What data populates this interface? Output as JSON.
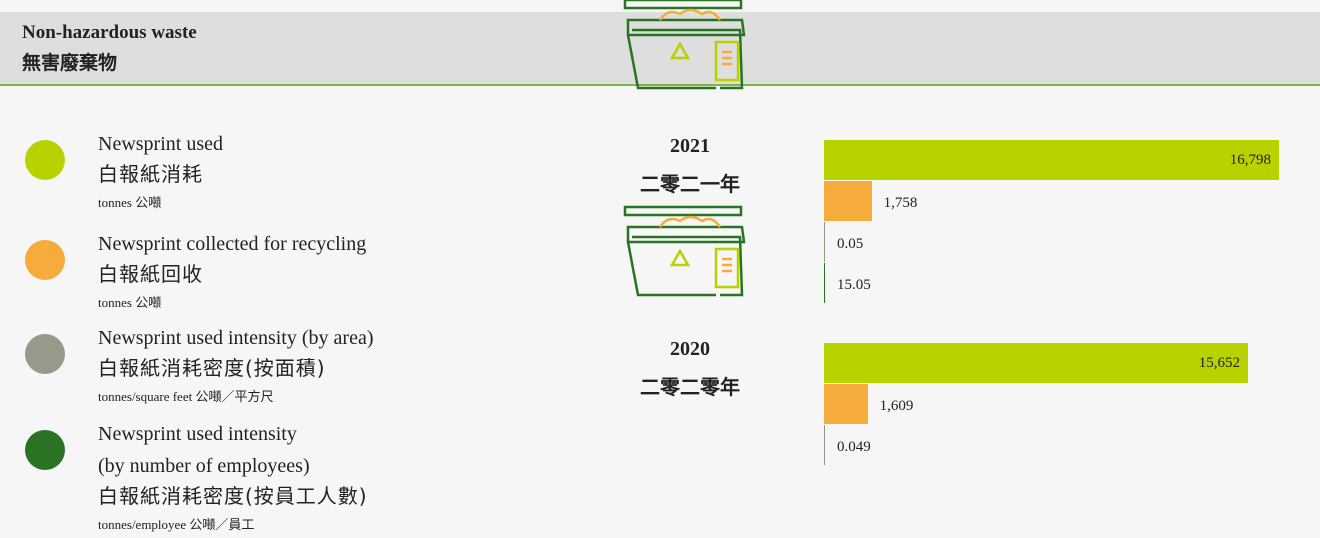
{
  "chart_data": {
    "type": "bar",
    "orientation": "horizontal",
    "title": "Non-hazardous waste",
    "subtitle": "無害廢棄物",
    "categories": [
      "2021",
      "2020"
    ],
    "category_labels_zh": [
      "二零二一年",
      "二零二零年"
    ],
    "series": [
      {
        "name": "Newsprint used",
        "name_zh": "白報紙消耗",
        "unit": "tonnes 公噸",
        "color": "#b8d200",
        "values": [
          16798,
          15652
        ],
        "value_labels": [
          "16,798",
          "15,652"
        ]
      },
      {
        "name": "Newsprint collected for recycling",
        "name_zh": "白報紙回收",
        "unit": "tonnes 公噸",
        "color": "#f5ac3c",
        "values": [
          1758,
          1609
        ],
        "value_labels": [
          "1,758",
          "1,609"
        ]
      },
      {
        "name": "Newsprint used intensity (by area)",
        "name_zh": "白報紙消耗密度(按面積)",
        "unit": "tonnes/square feet 公噸／平方尺",
        "color": "#959a8a",
        "values": [
          0.05,
          0.049
        ]
      },
      {
        "name": "Newsprint used intensity\n(by number of employees)",
        "name_zh": "白報紙消耗密度(按員工人數)",
        "unit": "tonnes/employee 公噸／員工",
        "color": "#2a7323",
        "values": [
          15.05,
          null
        ]
      }
    ]
  }
}
